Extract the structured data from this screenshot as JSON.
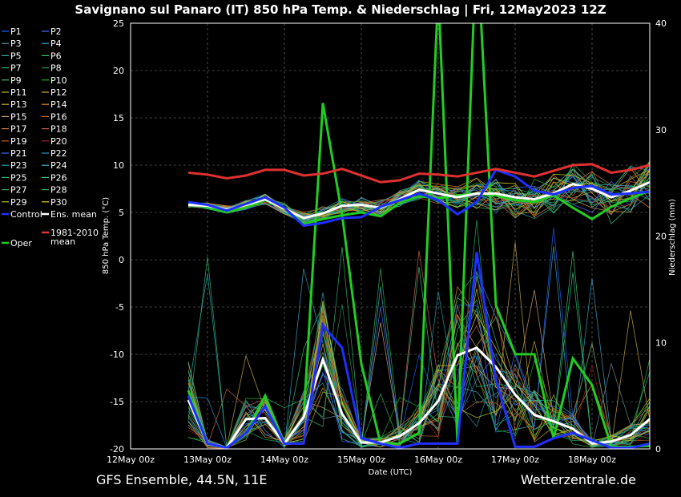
{
  "header": {
    "title": "Savignano sul Panaro  (IT)  850 hPa Temp. & Niederschlag | Fri, 12May2023 12Z"
  },
  "footer": {
    "left": "GFS Ensemble, 44.5N, 11E",
    "right": "Wetterzentrale.de"
  },
  "chart_data": {
    "type": "line",
    "title": "Savignano sul Panaro  (IT)  850 hPa Temp. & Niederschlag | Fri, 12May2023 12Z",
    "xlabel": "Date (UTC)",
    "ylabel": "850 hPa Temp. (°C)",
    "y2label": "Niederschlag (mm)",
    "ylim": [
      -20,
      25
    ],
    "y2lim": [
      0,
      40
    ],
    "y_ticks": [
      25,
      20,
      15,
      10,
      5,
      0,
      -5,
      -10,
      -15,
      -20
    ],
    "y_tick_labels": [
      "25",
      "20",
      "15",
      "10",
      "5",
      "0",
      "-5",
      "-10",
      "-15",
      "-20"
    ],
    "y2_ticks": [
      40,
      30,
      20,
      10,
      0
    ],
    "y2_tick_labels": [
      "40",
      "30",
      "20",
      "10",
      "0"
    ],
    "x_tick_labels": [
      "12May 00z",
      "13May 00z",
      "14May 00z",
      "15May 00z",
      "16May 00z",
      "17May 00z",
      "18May 00z"
    ],
    "x_step_hours": 6,
    "x_start_hours": 18,
    "grid": true,
    "legend_position": "left",
    "colors": {
      "mean_1981_2010": "#e03030",
      "ens_mean": "#ffffff",
      "control": "#1f2fff",
      "oper": "#22cc22"
    },
    "series_temperature": [
      {
        "name": "Oper",
        "values": [
          6.0,
          5.5,
          5.0,
          5.5,
          6.3,
          5.5,
          3.8,
          4.3,
          4.7,
          5.0,
          4.6,
          6.0,
          6.7,
          6.5,
          6.8,
          7.0,
          6.8,
          6.3,
          6.1,
          6.8,
          5.5,
          4.3,
          5.6,
          6.5,
          7.3
        ]
      },
      {
        "name": "Ens. mean",
        "values": [
          5.8,
          5.7,
          5.3,
          5.8,
          6.4,
          5.4,
          4.4,
          4.9,
          5.7,
          5.8,
          5.5,
          6.4,
          7.4,
          7.0,
          6.6,
          7.0,
          7.0,
          6.6,
          6.4,
          7.0,
          8.0,
          7.5,
          6.6,
          7.3,
          8.2
        ]
      },
      {
        "name": "Control",
        "values": [
          6.1,
          5.8,
          5.2,
          5.9,
          6.6,
          5.5,
          3.6,
          3.9,
          4.4,
          4.5,
          5.6,
          6.3,
          7.0,
          6.3,
          4.8,
          6.1,
          9.5,
          8.8,
          7.3,
          6.9,
          7.6,
          7.8,
          6.9,
          7.0,
          7.2
        ]
      },
      {
        "name": "1981-2010 mean",
        "values": [
          9.2,
          9.0,
          8.6,
          8.9,
          9.5,
          9.5,
          8.9,
          9.1,
          9.6,
          8.9,
          8.2,
          8.4,
          9.1,
          9.0,
          8.8,
          9.2,
          9.6,
          9.2,
          8.8,
          9.4,
          10.0,
          10.1,
          9.2,
          9.5,
          10.0
        ]
      }
    ],
    "series_precip": [
      {
        "name": "Oper",
        "values": [
          5.5,
          0.5,
          0.1,
          1.5,
          5.0,
          0.5,
          3.0,
          32.5,
          22.0,
          8.0,
          0.5,
          0.5,
          1.5,
          43.0,
          0.5,
          48.0,
          13.5,
          8.9,
          8.9,
          1.0,
          8.5,
          6.0,
          0.2,
          0.2,
          0.3
        ]
      },
      {
        "name": "Ens. mean",
        "values": [
          4.6,
          0.5,
          0.1,
          2.8,
          2.9,
          0.5,
          3.0,
          8.4,
          3.3,
          0.6,
          0.6,
          1.2,
          2.4,
          4.5,
          8.8,
          9.5,
          7.7,
          5.1,
          3.2,
          2.6,
          1.9,
          0.5,
          0.7,
          1.3,
          2.8
        ]
      },
      {
        "name": "Control",
        "values": [
          5.0,
          0.5,
          0.1,
          1.5,
          4.0,
          0.5,
          0.5,
          11.6,
          9.5,
          1.0,
          0.5,
          0.1,
          0.5,
          0.5,
          0.5,
          18.5,
          6.5,
          0.2,
          0.2,
          1.0,
          1.5,
          0.8,
          0.1,
          0.1,
          0.5
        ]
      }
    ],
    "legend": [
      [
        "P1",
        "P2"
      ],
      [
        "P3",
        "P4"
      ],
      [
        "P5",
        "P6"
      ],
      [
        "P7",
        "P8"
      ],
      [
        "P9",
        "P10"
      ],
      [
        "P11",
        "P12"
      ],
      [
        "P13",
        "P14"
      ],
      [
        "P15",
        "P16"
      ],
      [
        "P17",
        "P18"
      ],
      [
        "P19",
        "P20"
      ],
      [
        "P21",
        "P22"
      ],
      [
        "P23",
        "P24"
      ],
      [
        "P25",
        "P26"
      ],
      [
        "P27",
        "P28"
      ],
      [
        "P29",
        "P30"
      ],
      [
        "Control",
        "Ens. mean"
      ],
      [
        "",
        "1981-2010\nmean"
      ],
      [
        "Oper",
        ""
      ]
    ],
    "member_colors": [
      "#1f5fff",
      "#4a6bff",
      "#6a8d9a",
      "#38a0c8",
      "#2fa9a9",
      "#2ec27a",
      "#1fb06a",
      "#2e8b57",
      "#3cb371",
      "#22aa22",
      "#b8b030",
      "#c8a840",
      "#c8b020",
      "#e08a20",
      "#d2a070",
      "#c87030",
      "#d07a40",
      "#c86050",
      "#c06020",
      "#a02020",
      "#3a6aff",
      "#2b8fd0",
      "#1fa0b0",
      "#40b0c0",
      "#30b070",
      "#40c080",
      "#36a060",
      "#30b050",
      "#b0c020",
      "#e0d020"
    ]
  }
}
